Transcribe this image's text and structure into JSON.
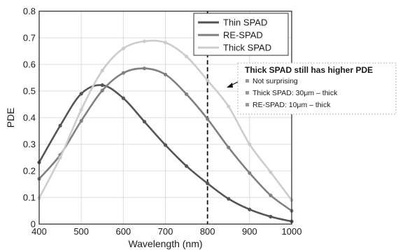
{
  "chart_data": {
    "type": "line",
    "title": "",
    "xlabel": "Wavelength (nm)",
    "ylabel": "PDE",
    "xlim": [
      400,
      1000
    ],
    "ylim": [
      0,
      0.8
    ],
    "xticks": [
      "400",
      "500",
      "600",
      "700",
      "800",
      "900",
      "1000"
    ],
    "yticks": [
      "0",
      "0.1",
      "0.2",
      "0.3",
      "0.4",
      "0.5",
      "0.6",
      "0.7",
      "0.8"
    ],
    "grid": true,
    "legend_position": "top-right",
    "series": [
      {
        "name": "Thin SPAD",
        "color": "#555555",
        "x": [
          400,
          450,
          500,
          550,
          600,
          650,
          700,
          750,
          800,
          850,
          900,
          950,
          1000
        ],
        "y": [
          0.232,
          0.37,
          0.49,
          0.522,
          0.473,
          0.385,
          0.297,
          0.218,
          0.153,
          0.095,
          0.055,
          0.028,
          0.01
        ]
      },
      {
        "name": "RE-SPAD",
        "color": "#808080",
        "x": [
          400,
          450,
          500,
          550,
          600,
          650,
          700,
          750,
          800,
          850,
          900,
          950,
          1000
        ],
        "y": [
          0.17,
          0.26,
          0.388,
          0.502,
          0.568,
          0.585,
          0.562,
          0.488,
          0.395,
          0.288,
          0.192,
          0.108,
          0.05
        ]
      },
      {
        "name": "Thick SPAD",
        "color": "#cccccc",
        "x": [
          400,
          450,
          500,
          550,
          600,
          650,
          700,
          750,
          800,
          850,
          900,
          950,
          1000
        ],
        "y": [
          0.098,
          0.25,
          0.43,
          0.577,
          0.66,
          0.687,
          0.682,
          0.63,
          0.54,
          0.442,
          0.3,
          0.195,
          0.09
        ]
      }
    ],
    "vertical_line": {
      "x": 800,
      "style": "dashed",
      "color": "#111111"
    },
    "annotation": {
      "title": "Thick SPAD still has higher PDE",
      "bullets": [
        "Not surprising",
        "Thick SPAD: 30μm – thick",
        "RE-SPAD: 10μm – thick"
      ]
    }
  }
}
